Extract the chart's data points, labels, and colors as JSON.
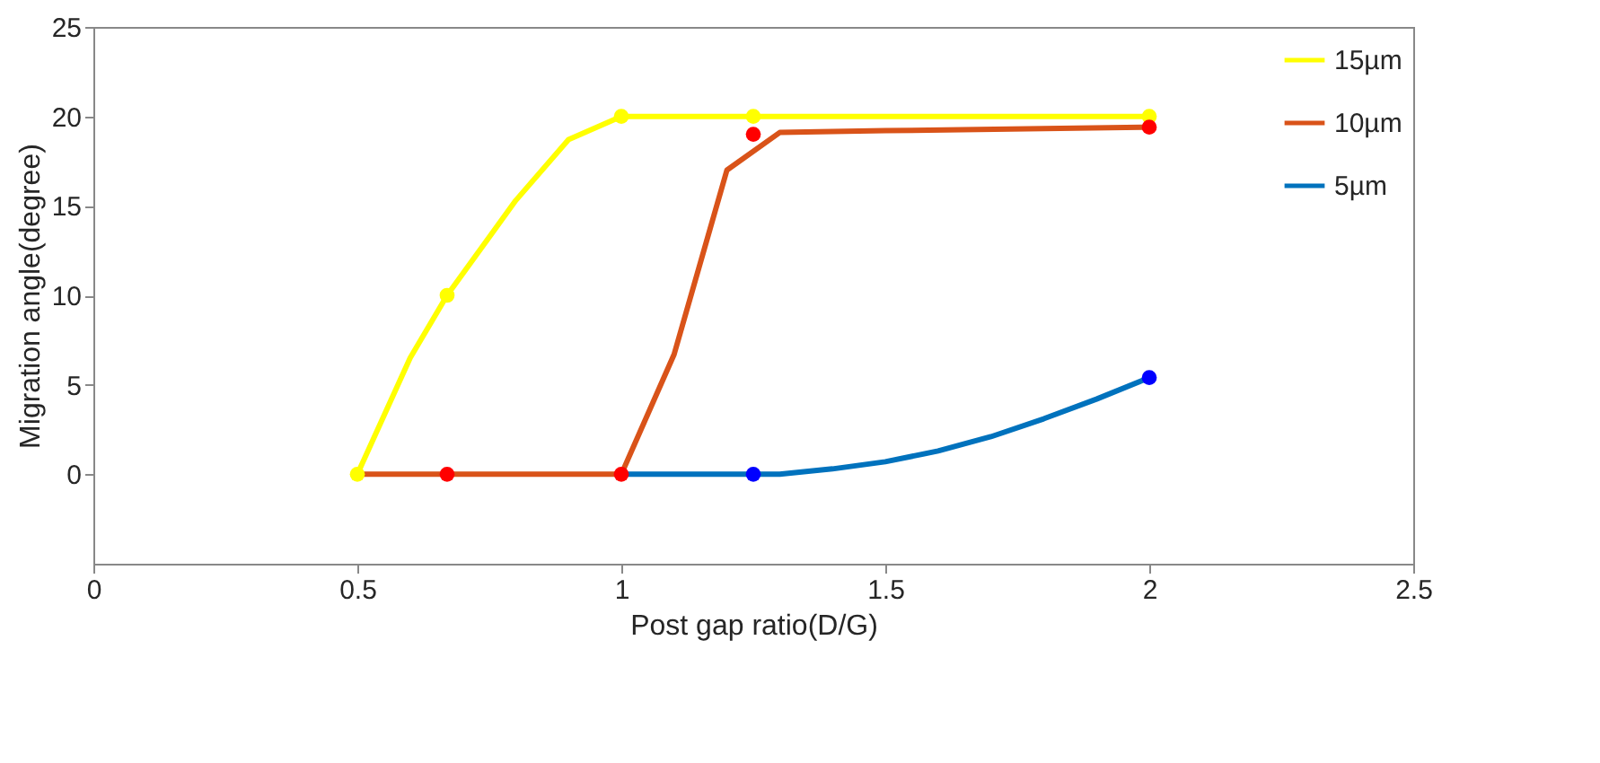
{
  "chart_data": {
    "type": "line",
    "xlabel": "Post gap ratio(D/G)",
    "ylabel": "Migration angle(degree)",
    "xlim": [
      0,
      2.5
    ],
    "xticks": [
      0,
      0.5,
      1,
      1.5,
      2,
      2.5
    ],
    "ylim": [
      -5,
      25
    ],
    "yticks": [
      0,
      5,
      10,
      15,
      20,
      25
    ],
    "grid": false,
    "legend": "top right",
    "marker": "none",
    "line_style": "solid",
    "series": [
      {
        "name": "15µm",
        "color": "#ffff00",
        "x": [
          0.5,
          0.6,
          0.67,
          0.8,
          0.9,
          1,
          1.25,
          2
        ],
        "values": [
          0,
          6.5,
          10,
          15.3,
          18.7,
          20,
          20,
          20
        ]
      },
      {
        "name": "10µm",
        "color": "#d95319",
        "x": [
          0.5,
          1,
          1.1,
          1.2,
          1.3,
          1.5,
          2
        ],
        "values": [
          0,
          0,
          6.7,
          17,
          19.1,
          19.2,
          19.4
        ]
      },
      {
        "name": "5µm",
        "color": "#0072bd",
        "x": [
          1,
          1.3,
          1.4,
          1.5,
          1.6,
          1.7,
          1.8,
          1.9,
          2
        ],
        "values": [
          0,
          0,
          0.3,
          0.7,
          1.3,
          2.1,
          3.1,
          4.2,
          5.4
        ]
      },
      {
        "color": "#ffff00",
        "type": "scatter",
        "marker": "circle",
        "x": [
          0.5,
          0.67,
          1,
          1.25,
          2
        ],
        "values": [
          0,
          10,
          20,
          20,
          20
        ]
      },
      {
        "color": "#ff0000",
        "type": "scatter",
        "marker": "circle",
        "x": [
          0.67,
          1,
          1.25,
          2
        ],
        "values": [
          0,
          0,
          19,
          19.4
        ]
      },
      {
        "color": "#0000ff",
        "type": "scatter",
        "marker": "circle",
        "x": [
          1.25,
          2
        ],
        "values": [
          0,
          5.4
        ]
      }
    ]
  }
}
